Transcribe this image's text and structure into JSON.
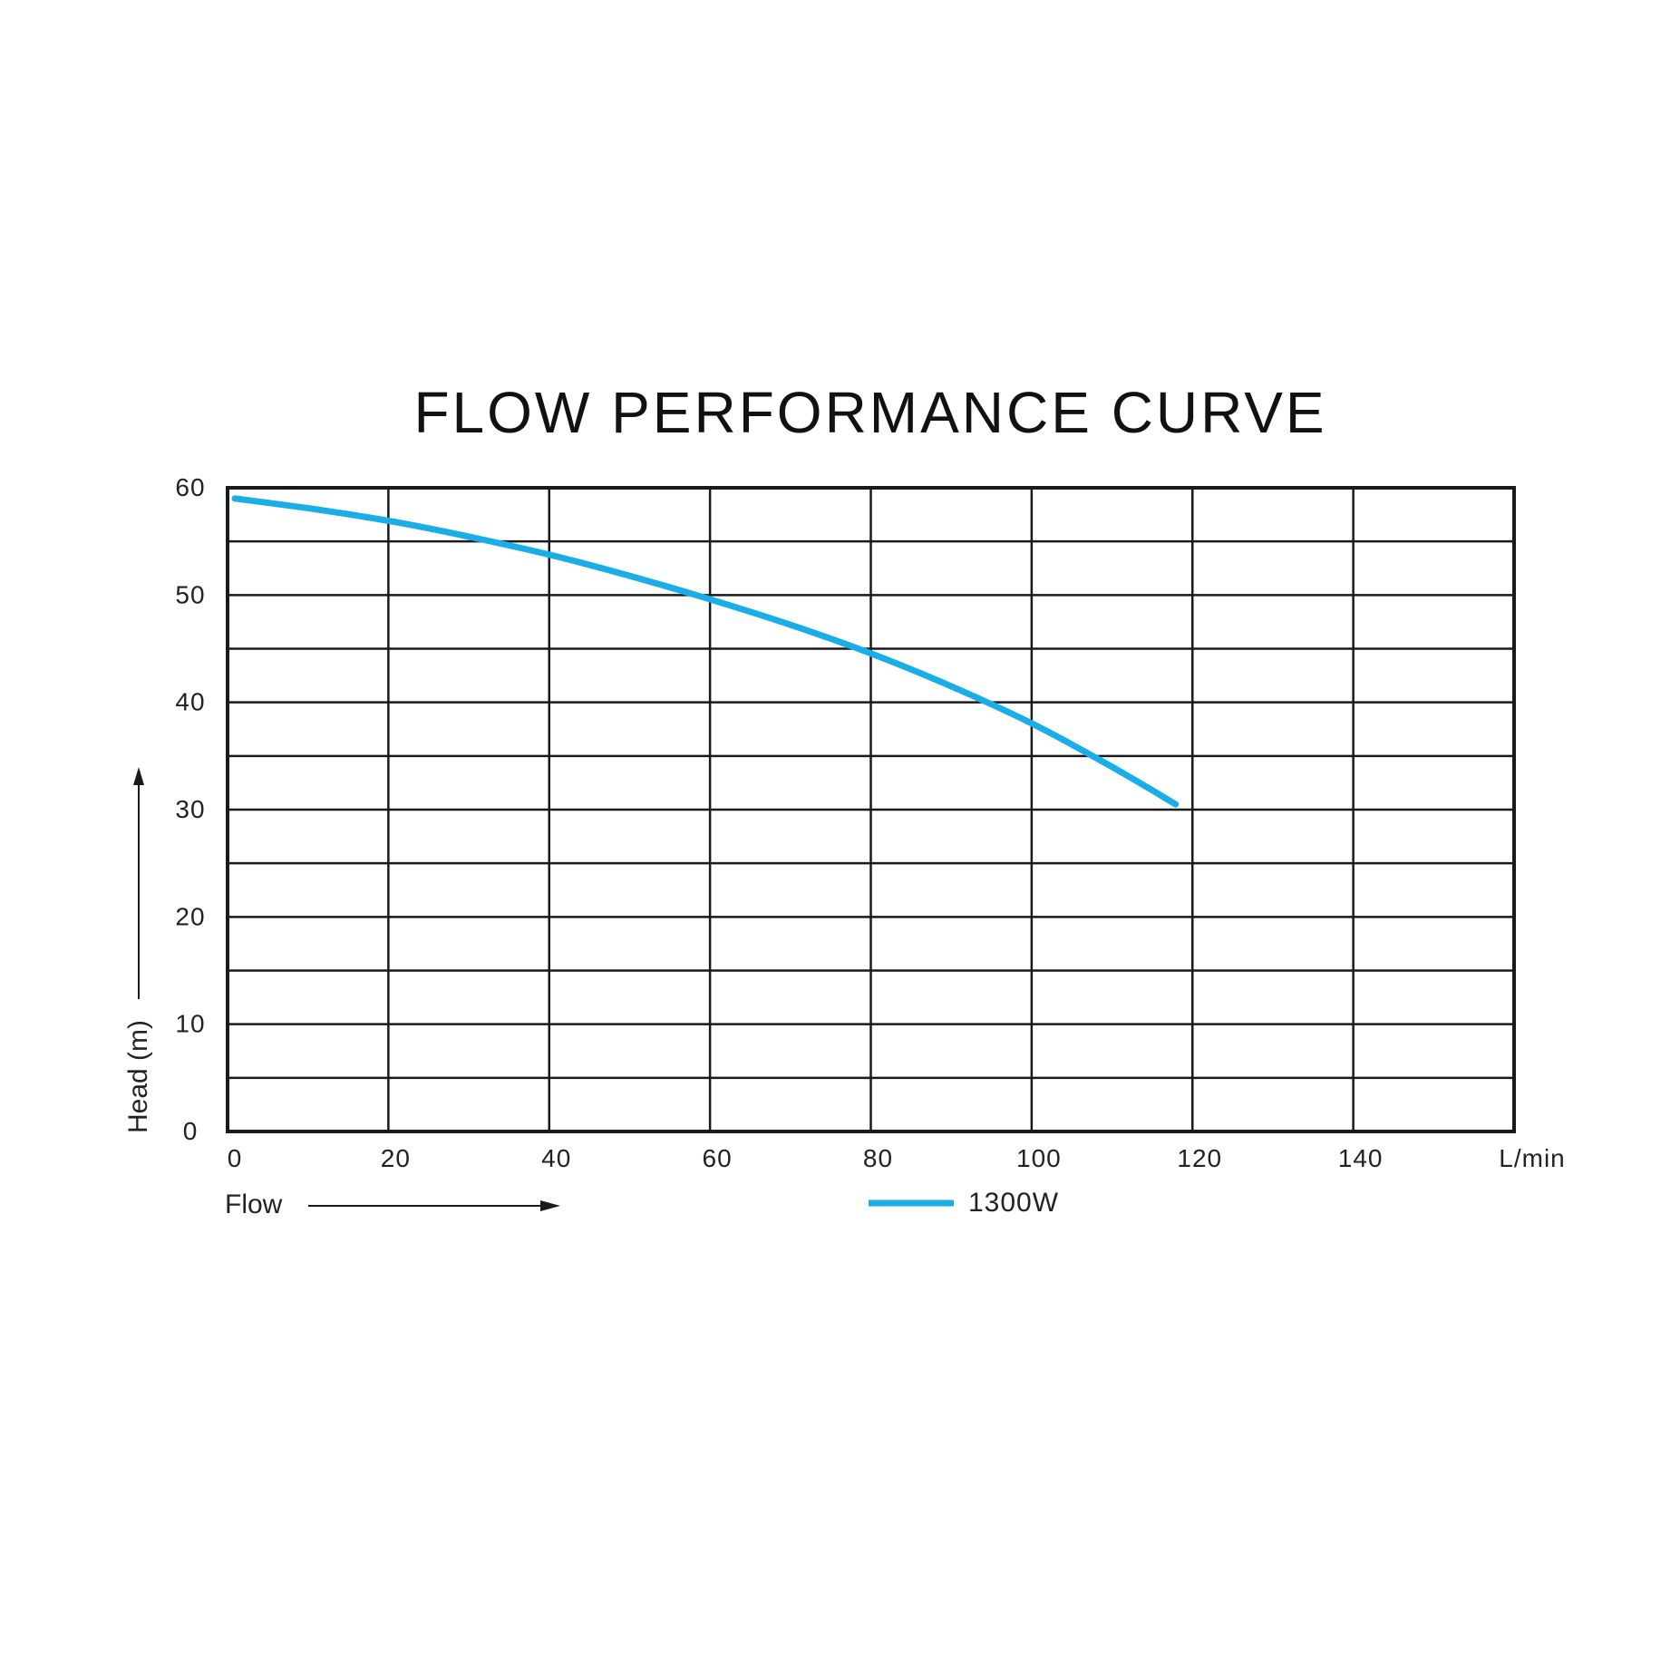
{
  "chart_data": {
    "type": "line",
    "title": "FLOW PERFORMANCE CURVE",
    "xlabel": "Flow",
    "ylabel": "Head (m)",
    "x_unit_label": "L/min",
    "xlim": [
      0,
      160
    ],
    "ylim": [
      0,
      60
    ],
    "x_ticks": [
      "0",
      "20",
      "40",
      "60",
      "80",
      "100",
      "120",
      "140"
    ],
    "y_ticks": [
      "0",
      "10",
      "20",
      "30",
      "40",
      "50",
      "60"
    ],
    "x_grid_step": 20,
    "y_grid_step": 5,
    "grid": true,
    "legend_position": "bottom-center",
    "series": [
      {
        "name": "1300W",
        "color": "#1aaee8",
        "x": [
          0,
          10,
          20,
          30,
          40,
          50,
          60,
          70,
          80,
          90,
          100,
          110,
          117
        ],
        "y": [
          59,
          58,
          56.8,
          55.3,
          53.6,
          51.6,
          49.4,
          47,
          44.3,
          41.2,
          37.7,
          33.6,
          30.5
        ]
      }
    ]
  }
}
